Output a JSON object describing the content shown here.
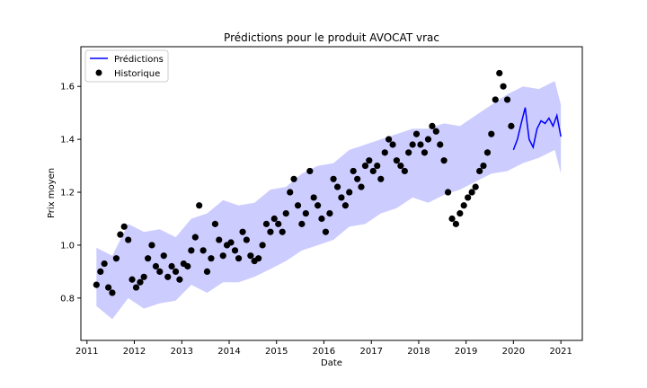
{
  "chart_data": {
    "type": "line",
    "title": "Prédictions pour le produit AVOCAT vrac",
    "xlabel": "Date",
    "ylabel": "Prix moyen",
    "x_ticks": [
      "2011",
      "2012",
      "2013",
      "2014",
      "2015",
      "2016",
      "2017",
      "2018",
      "2019",
      "2020",
      "2021"
    ],
    "xlim": [
      "2010-11-15",
      "2021-06-15"
    ],
    "y_ticks": [
      0.8,
      1.0,
      1.2,
      1.4,
      1.6
    ],
    "ylim": [
      0.64,
      1.75
    ],
    "grid": false,
    "legend": {
      "position": "upper-left",
      "entries": [
        {
          "label": "Prédictions",
          "marker": "line",
          "color": "#0000ff"
        },
        {
          "label": "Historique",
          "marker": "dot",
          "color": "#000000"
        }
      ]
    },
    "colors": {
      "forecast": "#0000ff",
      "band": "#0000ff",
      "band_opacity": 0.2,
      "history": "#000000"
    },
    "history": {
      "name": "Historique",
      "dates": [
        "2011-03-15",
        "2011-04-15",
        "2011-05-15",
        "2011-06-15",
        "2011-07-15",
        "2011-08-15",
        "2011-09-15",
        "2011-10-15",
        "2011-11-15",
        "2011-12-15",
        "2012-01-15",
        "2012-02-15",
        "2012-03-15",
        "2012-04-15",
        "2012-05-15",
        "2012-06-15",
        "2012-07-15",
        "2012-08-15",
        "2012-09-15",
        "2012-10-15",
        "2012-11-15",
        "2012-12-15",
        "2013-01-15",
        "2013-02-15",
        "2013-03-15",
        "2013-04-15",
        "2013-05-15",
        "2013-06-15",
        "2013-07-15",
        "2013-08-15",
        "2013-09-15",
        "2013-10-15",
        "2013-11-15",
        "2013-12-15",
        "2014-01-15",
        "2014-02-15",
        "2014-03-15",
        "2014-04-15",
        "2014-05-15",
        "2014-06-15",
        "2014-07-15",
        "2014-08-15",
        "2014-09-15",
        "2014-10-15",
        "2014-11-15",
        "2014-12-15",
        "2015-01-15",
        "2015-02-15",
        "2015-03-15",
        "2015-04-15",
        "2015-05-15",
        "2015-06-15",
        "2015-07-15",
        "2015-08-15",
        "2015-09-15",
        "2015-10-15",
        "2015-11-15",
        "2015-12-15",
        "2016-01-15",
        "2016-02-15",
        "2016-03-15",
        "2016-04-15",
        "2016-05-15",
        "2016-06-15",
        "2016-07-15",
        "2016-08-15",
        "2016-09-15",
        "2016-10-15",
        "2016-11-15",
        "2016-12-15",
        "2017-01-15",
        "2017-02-15",
        "2017-03-15",
        "2017-04-15",
        "2017-05-15",
        "2017-06-15",
        "2017-07-15",
        "2017-08-15",
        "2017-09-15",
        "2017-10-15",
        "2017-11-15",
        "2017-12-15",
        "2018-01-15",
        "2018-02-15",
        "2018-03-15",
        "2018-04-15",
        "2018-05-15",
        "2018-06-15",
        "2018-07-15",
        "2018-08-15",
        "2018-09-15",
        "2018-10-15",
        "2018-11-15",
        "2018-12-15",
        "2019-01-15",
        "2019-02-15",
        "2019-03-15",
        "2019-04-15",
        "2019-05-15",
        "2019-06-15",
        "2019-07-15",
        "2019-08-15",
        "2019-09-15",
        "2019-10-15",
        "2019-11-15",
        "2019-12-15"
      ],
      "values": [
        0.85,
        0.9,
        0.93,
        0.84,
        0.82,
        0.95,
        1.04,
        1.07,
        1.02,
        0.87,
        0.84,
        0.86,
        0.88,
        0.95,
        1.0,
        0.92,
        0.9,
        0.96,
        0.88,
        0.92,
        0.9,
        0.87,
        0.93,
        0.92,
        0.98,
        1.03,
        1.15,
        0.98,
        0.9,
        0.95,
        1.08,
        1.02,
        0.96,
        1.0,
        1.01,
        0.98,
        0.95,
        1.05,
        1.02,
        0.96,
        0.94,
        0.95,
        1.0,
        1.08,
        1.05,
        1.1,
        1.08,
        1.05,
        1.12,
        1.2,
        1.25,
        1.15,
        1.08,
        1.12,
        1.28,
        1.18,
        1.15,
        1.1,
        1.05,
        1.12,
        1.25,
        1.22,
        1.18,
        1.15,
        1.2,
        1.28,
        1.25,
        1.22,
        1.3,
        1.32,
        1.28,
        1.3,
        1.25,
        1.35,
        1.4,
        1.38,
        1.32,
        1.3,
        1.28,
        1.35,
        1.38,
        1.42,
        1.38,
        1.35,
        1.4,
        1.45,
        1.43,
        1.38,
        1.32,
        1.2,
        1.1,
        1.08,
        1.12,
        1.15,
        1.18,
        1.2,
        1.22,
        1.28,
        1.3,
        1.35,
        1.42,
        1.55,
        1.65,
        1.6,
        1.55,
        1.45
      ]
    },
    "forecast": {
      "name": "Prédictions",
      "dates": [
        "2020-01-01",
        "2020-02-01",
        "2020-03-01",
        "2020-04-01",
        "2020-05-01",
        "2020-06-01",
        "2020-07-01",
        "2020-08-01",
        "2020-09-01",
        "2020-10-01",
        "2020-11-01",
        "2020-12-01",
        "2021-01-01"
      ],
      "values": [
        1.36,
        1.4,
        1.46,
        1.52,
        1.4,
        1.37,
        1.44,
        1.47,
        1.46,
        1.48,
        1.45,
        1.49,
        1.41
      ]
    },
    "band": {
      "dates": [
        "2011-03-15",
        "2011-07-15",
        "2011-11-15",
        "2012-03-15",
        "2012-07-15",
        "2012-11-15",
        "2013-03-15",
        "2013-07-15",
        "2013-11-15",
        "2014-03-15",
        "2014-07-15",
        "2014-11-15",
        "2015-03-15",
        "2015-07-15",
        "2015-11-15",
        "2016-03-15",
        "2016-07-15",
        "2016-11-15",
        "2017-03-15",
        "2017-07-15",
        "2017-11-15",
        "2018-03-15",
        "2018-07-15",
        "2018-11-15",
        "2019-03-15",
        "2019-07-15",
        "2019-11-15",
        "2020-03-15",
        "2020-07-15",
        "2020-11-15",
        "2021-01-01"
      ],
      "lower": [
        0.77,
        0.72,
        0.8,
        0.76,
        0.78,
        0.79,
        0.85,
        0.82,
        0.86,
        0.86,
        0.88,
        0.91,
        0.94,
        0.98,
        1.0,
        1.02,
        1.07,
        1.08,
        1.12,
        1.14,
        1.18,
        1.16,
        1.19,
        1.21,
        1.24,
        1.27,
        1.28,
        1.31,
        1.33,
        1.36,
        1.27
      ],
      "upper": [
        0.99,
        0.96,
        1.08,
        1.05,
        1.06,
        1.03,
        1.1,
        1.12,
        1.17,
        1.15,
        1.16,
        1.21,
        1.22,
        1.27,
        1.3,
        1.31,
        1.36,
        1.38,
        1.4,
        1.42,
        1.44,
        1.44,
        1.46,
        1.45,
        1.49,
        1.53,
        1.57,
        1.6,
        1.59,
        1.62,
        1.53
      ]
    }
  }
}
